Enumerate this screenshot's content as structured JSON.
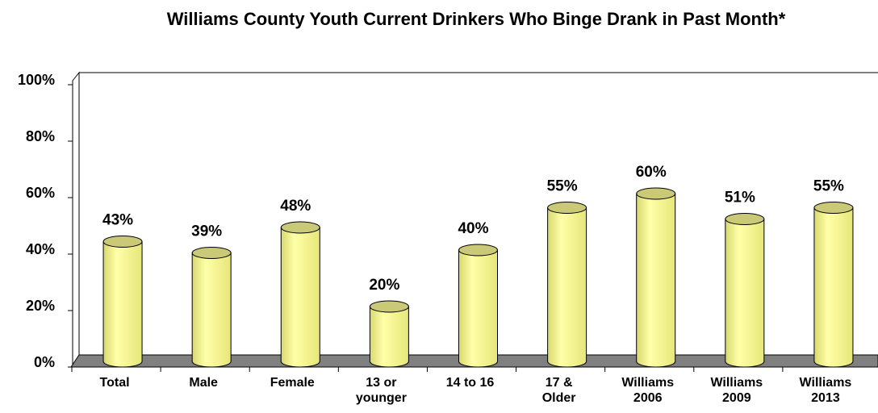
{
  "chart_data": {
    "type": "bar",
    "title": "Williams County Youth Current Drinkers Who Binge Drank in Past Month*",
    "categories": [
      "Total",
      "Male",
      "Female",
      "13 or younger",
      "14 to 16",
      "17 & Older",
      "Williams 2006",
      "Williams 2009",
      "Williams 2013"
    ],
    "values": [
      43,
      39,
      48,
      20,
      40,
      55,
      60,
      51,
      55
    ],
    "value_labels": [
      "43%",
      "39%",
      "48%",
      "20%",
      "40%",
      "55%",
      "60%",
      "51%",
      "55%"
    ],
    "color": "#ffff99",
    "ylim": [
      0,
      100
    ],
    "yticks": [
      {
        "value": 0,
        "label": "0%"
      },
      {
        "value": 20,
        "label": "20%"
      },
      {
        "value": 40,
        "label": "40%"
      },
      {
        "value": 60,
        "label": "60%"
      },
      {
        "value": 80,
        "label": "80%"
      },
      {
        "value": 100,
        "label": "100%"
      }
    ]
  }
}
